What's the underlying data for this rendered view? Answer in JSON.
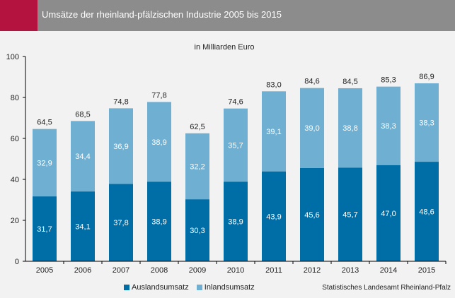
{
  "header": {
    "title": "Umsätze der rheinland-pfälzischen Industrie 2005 bis 2015"
  },
  "colors": {
    "header_bg": "#8c8c8c",
    "accent": "#b5133f",
    "auslands": "#006ea6",
    "inlands": "#6fb0d2",
    "axis": "#000000"
  },
  "chart_data": {
    "type": "bar",
    "stacked": true,
    "title": "Umsätze der rheinland-pfälzischen Industrie 2005 bis 2015",
    "subtitle": "in Milliarden Euro",
    "xlabel": "",
    "ylabel": "",
    "ylim": [
      0,
      100
    ],
    "yticks": [
      0,
      20,
      40,
      60,
      80,
      100
    ],
    "categories": [
      "2005",
      "2006",
      "2007",
      "2008",
      "2009",
      "2010",
      "2011",
      "2012",
      "2013",
      "2014",
      "2015"
    ],
    "series": [
      {
        "name": "Auslandsumsatz",
        "values": [
          31.7,
          34.1,
          37.8,
          38.9,
          30.3,
          38.9,
          43.9,
          45.6,
          45.7,
          47.0,
          48.6
        ],
        "labels": [
          "31,7",
          "34,1",
          "37,8",
          "38,9",
          "30,3",
          "38,9",
          "43,9",
          "45,6",
          "45,7",
          "47,0",
          "48,6"
        ]
      },
      {
        "name": "Inlandsumsatz",
        "values": [
          32.9,
          34.4,
          36.9,
          38.9,
          32.2,
          35.7,
          39.1,
          39.0,
          38.8,
          38.3,
          38.3
        ],
        "labels": [
          "32,9",
          "34,4",
          "36,9",
          "38,9",
          "32,2",
          "35,7",
          "39,1",
          "39,0",
          "38,8",
          "38,3",
          "38,3"
        ]
      }
    ],
    "totals": [
      "64,5",
      "68,5",
      "74,8",
      "77,8",
      "62,5",
      "74,6",
      "83,0",
      "84,6",
      "84,5",
      "85,3",
      "86,9"
    ],
    "legend": "bottom"
  },
  "legend": {
    "auslands": "Auslandsumsatz",
    "inlands": "Inlandsumsatz"
  },
  "source": "Statistisches Landesamt Rheinland-Pfalz"
}
